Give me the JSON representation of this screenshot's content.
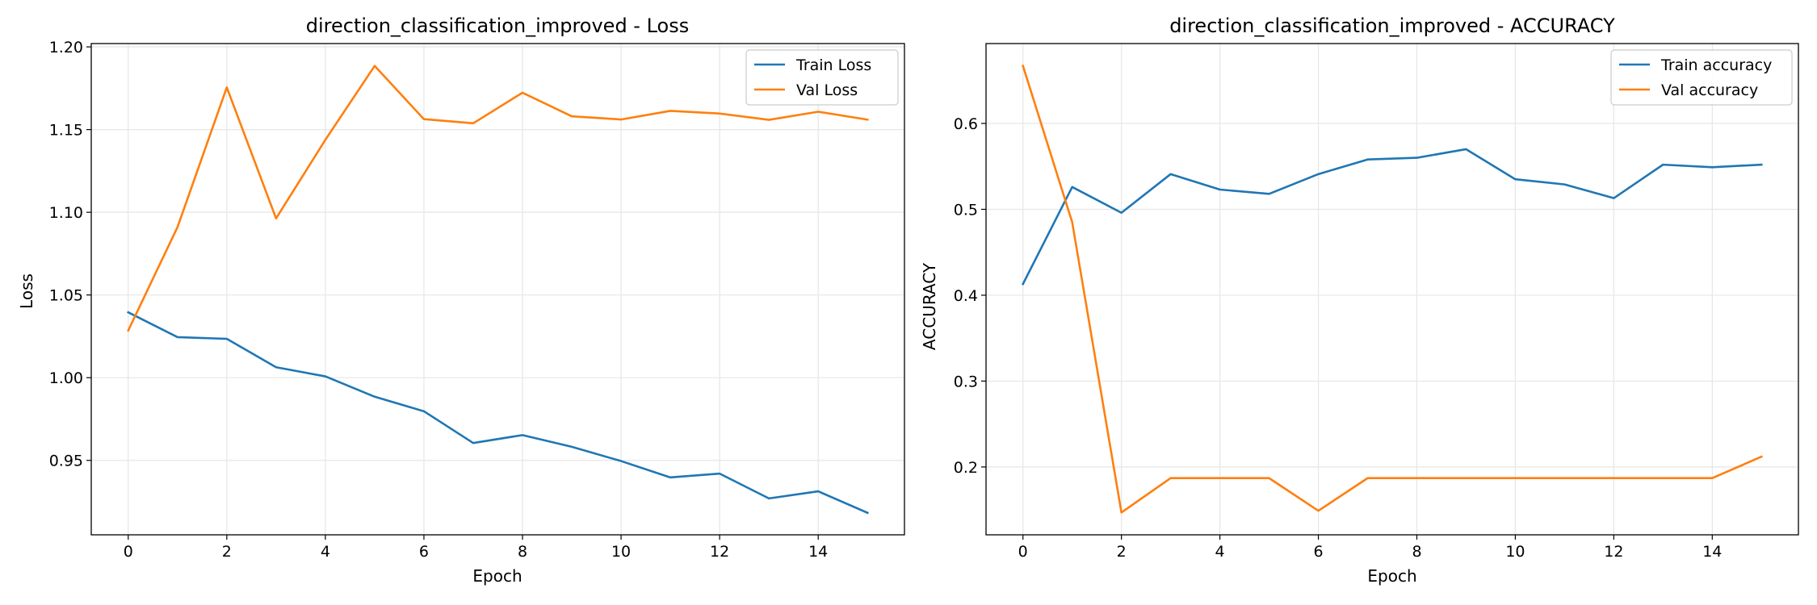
{
  "chart_data": [
    {
      "type": "line",
      "title": "direction_classification_improved - Loss",
      "xlabel": "Epoch",
      "ylabel": "Loss",
      "x": [
        0,
        1,
        2,
        3,
        4,
        5,
        6,
        7,
        8,
        9,
        10,
        11,
        12,
        13,
        14,
        15
      ],
      "xlim": [
        -0.75,
        15.75
      ],
      "ylim": [
        0.905,
        1.202
      ],
      "xticks": [
        0,
        2,
        4,
        6,
        8,
        10,
        12,
        14
      ],
      "xtick_labels": [
        "0",
        "2",
        "4",
        "6",
        "8",
        "10",
        "12",
        "14"
      ],
      "yticks": [
        0.95,
        1.0,
        1.05,
        1.1,
        1.15,
        1.2
      ],
      "ytick_labels": [
        "0.95",
        "1.00",
        "1.05",
        "1.10",
        "1.15",
        "1.20"
      ],
      "grid": true,
      "legend_position": "top-right",
      "series": [
        {
          "name": "Train Loss",
          "color": "#1f77b4",
          "values": [
            1.0395,
            1.0245,
            1.0235,
            1.0063,
            1.0008,
            0.9885,
            0.9797,
            0.9605,
            0.9653,
            0.9582,
            0.9496,
            0.9397,
            0.942,
            0.927,
            0.9313,
            0.9183
          ]
        },
        {
          "name": "Val Loss",
          "color": "#ff7f0e",
          "values": [
            1.0285,
            1.091,
            1.1755,
            1.0963,
            1.1438,
            1.1885,
            1.1563,
            1.1538,
            1.1723,
            1.158,
            1.1561,
            1.1613,
            1.1597,
            1.1559,
            1.1608,
            1.156
          ]
        }
      ]
    },
    {
      "type": "line",
      "title": "direction_classification_improved - ACCURACY",
      "xlabel": "Epoch",
      "ylabel": "ACCURACY",
      "x": [
        0,
        1,
        2,
        3,
        4,
        5,
        6,
        7,
        8,
        9,
        10,
        11,
        12,
        13,
        14,
        15
      ],
      "xlim": [
        -0.75,
        15.75
      ],
      "ylim": [
        0.121,
        0.693
      ],
      "xticks": [
        0,
        2,
        4,
        6,
        8,
        10,
        12,
        14
      ],
      "xtick_labels": [
        "0",
        "2",
        "4",
        "6",
        "8",
        "10",
        "12",
        "14"
      ],
      "yticks": [
        0.2,
        0.3,
        0.4,
        0.5,
        0.6
      ],
      "ytick_labels": [
        "0.2",
        "0.3",
        "0.4",
        "0.5",
        "0.6"
      ],
      "grid": true,
      "legend_position": "top-right",
      "series": [
        {
          "name": "Train accuracy",
          "color": "#1f77b4",
          "values": [
            0.413,
            0.526,
            0.496,
            0.541,
            0.523,
            0.518,
            0.541,
            0.558,
            0.56,
            0.57,
            0.535,
            0.529,
            0.513,
            0.552,
            0.549,
            0.552
          ]
        },
        {
          "name": "Val accuracy",
          "color": "#ff7f0e",
          "values": [
            0.667,
            0.485,
            0.147,
            0.187,
            0.187,
            0.187,
            0.149,
            0.187,
            0.187,
            0.187,
            0.187,
            0.187,
            0.187,
            0.187,
            0.187,
            0.212
          ]
        }
      ]
    }
  ]
}
